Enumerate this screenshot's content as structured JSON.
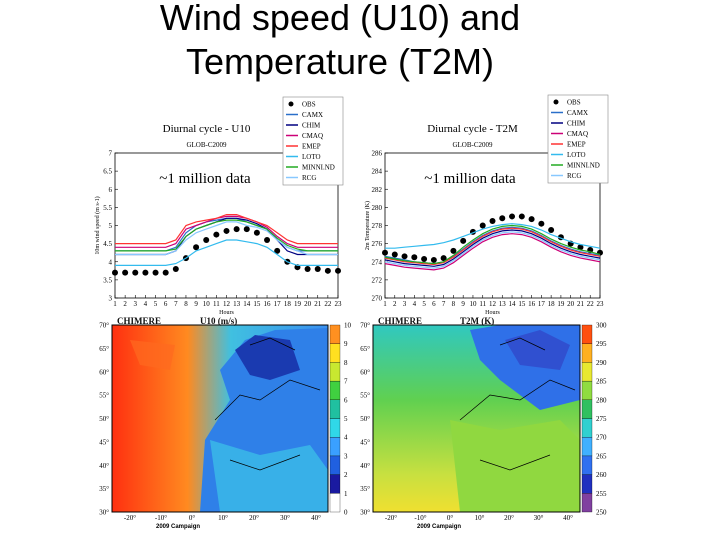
{
  "title": "Wind speed (U10) and Temperature (T2M)",
  "chart_data": [
    {
      "type": "line",
      "title": "Diurnal cycle - U10",
      "subtitle": "GLOB-C2009",
      "annotation": "~1 million data",
      "x_label": "Hours",
      "y_label": "10m wind speed (m s-1)",
      "x": [
        1,
        2,
        3,
        4,
        5,
        6,
        7,
        8,
        9,
        10,
        11,
        12,
        13,
        14,
        15,
        16,
        17,
        18,
        19,
        20,
        21,
        22,
        23
      ],
      "xlim": [
        1,
        23
      ],
      "xticks": [
        1,
        2,
        3,
        4,
        5,
        6,
        7,
        8,
        9,
        10,
        11,
        12,
        13,
        14,
        15,
        16,
        17,
        18,
        19,
        20,
        21,
        22,
        23
      ],
      "ylim": [
        3,
        7
      ],
      "yticks": [
        3,
        3.5,
        4,
        4.5,
        5,
        5.5,
        6,
        6.5,
        7
      ],
      "series": [
        {
          "name": "OBS",
          "color": "#000000",
          "values": [
            3.7,
            3.7,
            3.7,
            3.7,
            3.7,
            3.7,
            3.8,
            4.1,
            4.4,
            4.6,
            4.75,
            4.85,
            4.9,
            4.9,
            4.8,
            4.6,
            4.3,
            4.0,
            3.85,
            3.8,
            3.8,
            3.75,
            3.75
          ]
        },
        {
          "name": "CAMX",
          "color": "#2a6fc9",
          "values": [
            4.3,
            4.3,
            4.3,
            4.3,
            4.3,
            4.3,
            4.4,
            4.8,
            5.0,
            5.1,
            5.15,
            5.2,
            5.2,
            5.1,
            5.0,
            4.9,
            4.6,
            4.4,
            4.3,
            4.3,
            4.3,
            4.3,
            4.3
          ]
        },
        {
          "name": "CHIM",
          "color": "#000080",
          "values": [
            4.2,
            4.2,
            4.2,
            4.2,
            4.2,
            4.2,
            4.3,
            4.7,
            4.9,
            5.0,
            5.1,
            5.2,
            5.2,
            5.15,
            5.05,
            4.9,
            4.6,
            4.3,
            4.2,
            4.2,
            4.2,
            4.2,
            4.2
          ]
        },
        {
          "name": "CMAQ",
          "color": "#cc0077",
          "values": [
            4.4,
            4.4,
            4.4,
            4.4,
            4.4,
            4.4,
            4.5,
            4.9,
            5.0,
            5.1,
            5.2,
            5.25,
            5.25,
            5.2,
            5.1,
            4.95,
            4.7,
            4.5,
            4.4,
            4.4,
            4.4,
            4.4,
            4.4
          ]
        },
        {
          "name": "EMEP",
          "color": "#ff3333",
          "values": [
            4.5,
            4.5,
            4.5,
            4.5,
            4.5,
            4.5,
            4.6,
            5.0,
            5.1,
            5.15,
            5.2,
            5.3,
            5.3,
            5.2,
            5.1,
            5.0,
            4.8,
            4.6,
            4.5,
            4.5,
            4.5,
            4.5,
            4.5
          ]
        },
        {
          "name": "LOTO",
          "color": "#33bbee",
          "values": [
            3.9,
            3.9,
            3.9,
            3.9,
            3.9,
            3.9,
            3.95,
            4.1,
            4.3,
            4.4,
            4.5,
            4.6,
            4.6,
            4.55,
            4.5,
            4.4,
            4.2,
            4.0,
            3.9,
            3.9,
            3.9,
            3.9,
            3.9
          ]
        },
        {
          "name": "MINNI.ND",
          "color": "#22aa22",
          "values": [
            4.3,
            4.3,
            4.3,
            4.3,
            4.3,
            4.3,
            4.35,
            4.7,
            4.9,
            5.0,
            5.1,
            5.15,
            5.15,
            5.1,
            5.0,
            4.9,
            4.65,
            4.45,
            4.35,
            4.3,
            4.3,
            4.3,
            4.3
          ]
        },
        {
          "name": "RCG",
          "color": "#88c8ff",
          "values": [
            4.2,
            4.2,
            4.2,
            4.2,
            4.2,
            4.2,
            4.3,
            4.6,
            4.8,
            4.9,
            5.0,
            5.1,
            5.1,
            5.0,
            4.95,
            4.85,
            4.6,
            4.4,
            4.3,
            4.2,
            4.2,
            4.2,
            4.2
          ]
        }
      ]
    },
    {
      "type": "line",
      "title": "Diurnal cycle - T2M",
      "subtitle": "GLOB-C2009",
      "annotation": "~1 million data",
      "x_label": "Hours",
      "y_label": "2m Temperature (K)",
      "x": [
        1,
        2,
        3,
        4,
        5,
        6,
        7,
        8,
        9,
        10,
        11,
        12,
        13,
        14,
        15,
        16,
        17,
        18,
        19,
        20,
        21,
        22,
        23
      ],
      "xlim": [
        1,
        23
      ],
      "xticks": [
        1,
        2,
        3,
        4,
        5,
        6,
        7,
        8,
        9,
        10,
        11,
        12,
        13,
        14,
        15,
        16,
        17,
        18,
        19,
        20,
        21,
        22,
        23
      ],
      "ylim": [
        270,
        286
      ],
      "yticks": [
        270,
        272,
        274,
        276,
        278,
        280,
        282,
        284,
        286
      ],
      "series": [
        {
          "name": "OBS",
          "color": "#000000",
          "values": [
            275,
            274.8,
            274.6,
            274.5,
            274.3,
            274.2,
            274.4,
            275.2,
            276.3,
            277.3,
            278,
            278.5,
            278.8,
            279,
            279,
            278.7,
            278.2,
            277.5,
            276.7,
            276,
            275.6,
            275.3,
            275
          ]
        },
        {
          "name": "CAMX",
          "color": "#2a6fc9",
          "values": [
            274.6,
            274.4,
            274.2,
            274.0,
            273.9,
            273.8,
            274.0,
            274.6,
            275.4,
            276.2,
            276.9,
            277.4,
            277.7,
            277.8,
            277.7,
            277.4,
            276.9,
            276.3,
            275.8,
            275.4,
            275.1,
            274.9,
            274.7
          ]
        },
        {
          "name": "CHIM",
          "color": "#000080",
          "values": [
            274.2,
            274.0,
            273.8,
            273.7,
            273.6,
            273.5,
            273.7,
            274.3,
            275.1,
            275.9,
            276.6,
            277.1,
            277.4,
            277.5,
            277.4,
            277.1,
            276.6,
            276.0,
            275.5,
            275.1,
            274.8,
            274.6,
            274.4
          ]
        },
        {
          "name": "CMAQ",
          "color": "#cc0077",
          "values": [
            273.8,
            273.6,
            273.4,
            273.3,
            273.2,
            273.1,
            273.3,
            273.9,
            274.7,
            275.5,
            276.2,
            276.7,
            277.0,
            277.1,
            277.0,
            276.7,
            276.2,
            275.6,
            275.1,
            274.7,
            274.4,
            274.2,
            274.0
          ]
        },
        {
          "name": "EMEP",
          "color": "#ff3333",
          "values": [
            274.4,
            274.2,
            274.0,
            273.9,
            273.8,
            273.7,
            273.9,
            274.5,
            275.3,
            276.1,
            276.8,
            277.3,
            277.6,
            277.7,
            277.6,
            277.3,
            276.8,
            276.2,
            275.7,
            275.3,
            275.0,
            274.8,
            274.6
          ]
        },
        {
          "name": "LOTO",
          "color": "#33bbee",
          "values": [
            275.5,
            275.5,
            275.6,
            275.7,
            275.8,
            275.9,
            276.1,
            276.4,
            276.8,
            277.2,
            277.6,
            277.9,
            278.1,
            278.2,
            278.1,
            277.9,
            277.5,
            277.0,
            276.6,
            276.2,
            275.9,
            275.7,
            275.5
          ]
        },
        {
          "name": "MINNI.ND",
          "color": "#22aa22",
          "values": [
            274.5,
            274.3,
            274.1,
            274.0,
            273.9,
            273.8,
            274.0,
            274.7,
            275.6,
            276.4,
            277.1,
            277.6,
            277.9,
            278.0,
            277.9,
            277.6,
            277.1,
            276.5,
            276.0,
            275.6,
            275.3,
            275.1,
            274.8
          ]
        },
        {
          "name": "RCG",
          "color": "#88c8ff",
          "values": [
            274.0,
            273.8,
            273.6,
            273.5,
            273.4,
            273.3,
            273.5,
            274.1,
            274.9,
            275.7,
            276.4,
            276.9,
            277.2,
            277.3,
            277.2,
            276.9,
            276.4,
            275.8,
            275.3,
            274.9,
            274.6,
            274.4,
            274.2
          ]
        }
      ]
    }
  ],
  "maps": [
    {
      "model": "CHIMERE",
      "variable": "U10 (m/s)",
      "caption": "2009 Campaign",
      "colorbar_ticks": [
        0,
        1,
        2,
        3,
        4,
        5,
        6,
        7,
        8,
        9,
        10
      ],
      "colorbar_colors": [
        "#ffffff",
        "#1a1aa0",
        "#2060e0",
        "#3aa0ff",
        "#30d8e8",
        "#20c0a0",
        "#40d040",
        "#c8e830",
        "#ffe020",
        "#ff9020"
      ],
      "lat_labels": [
        "70°",
        "65°",
        "60°",
        "55°",
        "50°",
        "45°",
        "40°",
        "35°",
        "30°"
      ],
      "lon_labels": [
        "-20°",
        "-10°",
        "0°",
        "10°",
        "20°",
        "30°",
        "40°"
      ]
    },
    {
      "model": "CHIMERE",
      "variable": "T2M (K)",
      "caption": "2009 Campaign",
      "colorbar_ticks": [
        250,
        255,
        260,
        265,
        270,
        275,
        280,
        285,
        290,
        295,
        300
      ],
      "colorbar_colors": [
        "#8040a0",
        "#2030c0",
        "#3070f0",
        "#40b0ff",
        "#30d0d0",
        "#30c060",
        "#90dc40",
        "#e8e830",
        "#ffb020",
        "#ff5010"
      ],
      "lat_labels": [
        "70°",
        "65°",
        "60°",
        "55°",
        "50°",
        "45°",
        "40°",
        "35°",
        "30°"
      ],
      "lon_labels": [
        "-20°",
        "-10°",
        "0°",
        "10°",
        "20°",
        "30°",
        "40°"
      ]
    }
  ]
}
